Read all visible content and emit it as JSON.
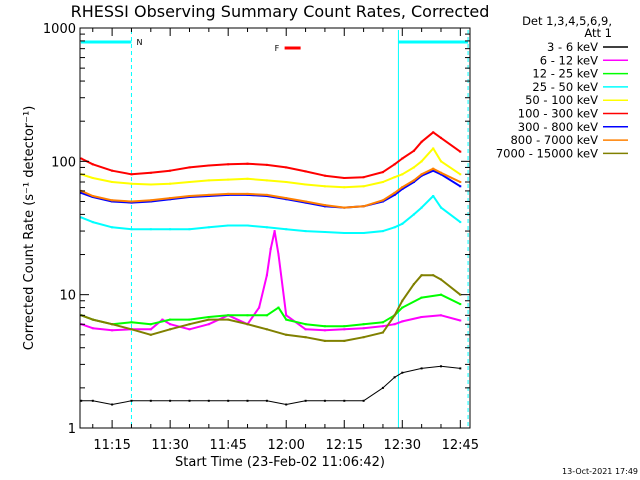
{
  "chart_data": {
    "type": "line",
    "title": "RHESSI Observing Summary Count Rates, Corrected",
    "xlabel": "Start Time (23-Feb-02 11:06:42)",
    "ylabel": "Corrected Count Rate (s⁻¹ detector⁻¹)",
    "y_scale": "log",
    "ylim": [
      1,
      1000
    ],
    "xlim": [
      "11:06:42",
      "12:47:30"
    ],
    "y_ticks": [
      "1",
      "10",
      "100",
      "1000"
    ],
    "x_ticks": [
      "11:15",
      "11:30",
      "11:45",
      "12:00",
      "12:15",
      "12:30",
      "12:45"
    ],
    "grid": false,
    "legend_position": "right",
    "legend_header": [
      "Det 1,3,4,5,6,9,",
      "Att 1"
    ],
    "annotations": {
      "night_label": "N",
      "flare_label": "F",
      "footer": "13-Oct-2021 17:49"
    },
    "series": [
      {
        "name": "3 - 6 keV",
        "color": "#000000",
        "x": [
          "11:07",
          "11:10",
          "11:15",
          "11:20",
          "11:25",
          "11:30",
          "11:35",
          "11:40",
          "11:45",
          "11:50",
          "11:55",
          "12:00",
          "12:05",
          "12:10",
          "12:15",
          "12:20",
          "12:25",
          "12:28",
          "12:30",
          "12:35",
          "12:40",
          "12:45"
        ],
        "y": [
          1.6,
          1.6,
          1.5,
          1.6,
          1.6,
          1.6,
          1.6,
          1.6,
          1.6,
          1.6,
          1.6,
          1.5,
          1.6,
          1.6,
          1.6,
          1.6,
          2.0,
          2.4,
          2.6,
          2.8,
          2.9,
          2.8
        ]
      },
      {
        "name": "6 - 12 keV",
        "color": "#ff00ff",
        "x": [
          "11:07",
          "11:10",
          "11:15",
          "11:20",
          "11:25",
          "11:28",
          "11:30",
          "11:35",
          "11:40",
          "11:45",
          "11:50",
          "11:53",
          "11:55",
          "11:56",
          "11:57",
          "11:58",
          "12:00",
          "12:05",
          "12:10",
          "12:15",
          "12:20",
          "12:25",
          "12:28",
          "12:30",
          "12:35",
          "12:40",
          "12:45"
        ],
        "y": [
          6,
          5.6,
          5.4,
          5.5,
          5.5,
          6.5,
          6,
          5.5,
          6,
          7,
          6,
          8,
          14,
          22,
          30,
          20,
          7,
          5.5,
          5.4,
          5.5,
          5.6,
          5.8,
          6,
          6.3,
          6.8,
          7,
          6.4
        ]
      },
      {
        "name": "12 - 25 keV",
        "color": "#00ff00",
        "x": [
          "11:07",
          "11:10",
          "11:15",
          "11:20",
          "11:25",
          "11:30",
          "11:35",
          "11:40",
          "11:45",
          "11:50",
          "11:55",
          "11:58",
          "12:00",
          "12:05",
          "12:10",
          "12:15",
          "12:20",
          "12:25",
          "12:28",
          "12:30",
          "12:35",
          "12:40",
          "12:45"
        ],
        "y": [
          7,
          6.5,
          6,
          6.2,
          6,
          6.5,
          6.5,
          6.8,
          7,
          7,
          7,
          8,
          6.5,
          6,
          5.8,
          5.8,
          6,
          6.2,
          7,
          8,
          9.5,
          10,
          8.5
        ]
      },
      {
        "name": "25 - 50 keV",
        "color": "#00ffff",
        "x": [
          "11:07",
          "11:10",
          "11:15",
          "11:20",
          "11:25",
          "11:30",
          "11:35",
          "11:40",
          "11:45",
          "11:50",
          "11:55",
          "12:00",
          "12:05",
          "12:10",
          "12:15",
          "12:20",
          "12:25",
          "12:28",
          "12:30",
          "12:33",
          "12:35",
          "12:38",
          "12:40",
          "12:45"
        ],
        "y": [
          38,
          35,
          32,
          31,
          31,
          31,
          31,
          32,
          33,
          33,
          32,
          31,
          30,
          29.5,
          29,
          29,
          30,
          32,
          34,
          40,
          45,
          55,
          45,
          35
        ]
      },
      {
        "name": "50 - 100 keV",
        "color": "#ffff00",
        "x": [
          "11:07",
          "11:10",
          "11:15",
          "11:20",
          "11:25",
          "11:30",
          "11:35",
          "11:40",
          "11:45",
          "11:50",
          "11:55",
          "12:00",
          "12:05",
          "12:10",
          "12:15",
          "12:20",
          "12:25",
          "12:28",
          "12:30",
          "12:33",
          "12:35",
          "12:38",
          "12:40",
          "12:45"
        ],
        "y": [
          80,
          75,
          70,
          68,
          67,
          68,
          70,
          72,
          73,
          74,
          72,
          70,
          67,
          65,
          64,
          65,
          70,
          76,
          80,
          90,
          100,
          125,
          100,
          80
        ]
      },
      {
        "name": "100 - 300 keV",
        "color": "#ff0000",
        "x": [
          "11:07",
          "11:10",
          "11:15",
          "11:20",
          "11:25",
          "11:30",
          "11:35",
          "11:40",
          "11:45",
          "11:50",
          "11:55",
          "12:00",
          "12:05",
          "12:10",
          "12:15",
          "12:20",
          "12:25",
          "12:28",
          "12:30",
          "12:33",
          "12:35",
          "12:38",
          "12:40",
          "12:45"
        ],
        "y": [
          105,
          95,
          85,
          80,
          82,
          85,
          90,
          93,
          95,
          96,
          94,
          90,
          84,
          78,
          75,
          76,
          83,
          95,
          105,
          120,
          140,
          165,
          150,
          118
        ]
      },
      {
        "name": "300 - 800 keV",
        "color": "#0000ff",
        "x": [
          "11:07",
          "11:10",
          "11:15",
          "11:20",
          "11:25",
          "11:30",
          "11:35",
          "11:40",
          "11:45",
          "11:50",
          "11:55",
          "12:00",
          "12:05",
          "12:10",
          "12:15",
          "12:20",
          "12:25",
          "12:28",
          "12:30",
          "12:33",
          "12:35",
          "12:38",
          "12:40",
          "12:45"
        ],
        "y": [
          58,
          54,
          50,
          49,
          50,
          52,
          54,
          55,
          56,
          56,
          55,
          52,
          49,
          46,
          45,
          46,
          50,
          56,
          62,
          70,
          78,
          85,
          80,
          65
        ]
      },
      {
        "name": "800 - 7000 keV",
        "color": "#ff8000",
        "x": [
          "11:07",
          "11:10",
          "11:15",
          "11:20",
          "11:25",
          "11:30",
          "11:35",
          "11:40",
          "11:45",
          "11:50",
          "11:55",
          "12:00",
          "12:05",
          "12:10",
          "12:15",
          "12:20",
          "12:25",
          "12:28",
          "12:30",
          "12:33",
          "12:35",
          "12:38",
          "12:40",
          "12:45"
        ],
        "y": [
          60,
          55,
          51,
          50,
          51,
          53,
          55,
          56,
          57,
          57,
          56,
          53,
          50,
          47,
          45,
          46,
          51,
          58,
          64,
          72,
          80,
          88,
          82,
          70
        ]
      },
      {
        "name": "7000 - 15000 keV",
        "color": "#808000",
        "x": [
          "11:07",
          "11:10",
          "11:15",
          "11:20",
          "11:25",
          "11:30",
          "11:35",
          "11:40",
          "11:45",
          "11:50",
          "11:55",
          "12:00",
          "12:05",
          "12:10",
          "12:15",
          "12:20",
          "12:25",
          "12:28",
          "12:30",
          "12:33",
          "12:35",
          "12:38",
          "12:40",
          "12:45"
        ],
        "y": [
          7,
          6.5,
          6,
          5.5,
          5,
          5.5,
          6,
          6.5,
          6.5,
          6,
          5.5,
          5,
          4.8,
          4.5,
          4.5,
          4.8,
          5.2,
          7,
          9,
          12,
          14,
          14,
          13,
          10
        ]
      }
    ]
  }
}
